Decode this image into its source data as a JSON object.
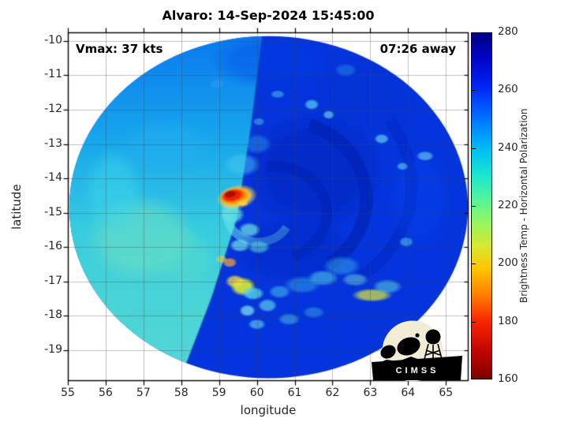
{
  "chart_data": {
    "type": "heatmap",
    "title": "Alvaro: 14-Sep-2024 15:45:00",
    "xlabel": "longitude",
    "ylabel": "latitude",
    "xlim": [
      55,
      65.6
    ],
    "ylim": [
      -19.9,
      -9.75
    ],
    "x_ticks": [
      55,
      56,
      57,
      58,
      59,
      60,
      61,
      62,
      63,
      64,
      65
    ],
    "y_ticks": [
      -10,
      -11,
      -12,
      -13,
      -14,
      -15,
      -16,
      -17,
      -18,
      -19
    ],
    "grid": true,
    "tick_dir": "out",
    "annotations": {
      "vmax": "Vmax: 37 kts",
      "time_to_closest": "07:26 away"
    },
    "colorbar": {
      "label": "Brightness Temp - Horizontal Polarization",
      "min": 160,
      "max": 280,
      "ticks": [
        160,
        180,
        200,
        220,
        240,
        260,
        280
      ],
      "inner_ticks": [
        180,
        200,
        220,
        240,
        260
      ],
      "stops": [
        {
          "v": 280,
          "c": "#000083"
        },
        {
          "v": 271,
          "c": "#0005C8"
        },
        {
          "v": 262,
          "c": "#0022F2"
        },
        {
          "v": 254,
          "c": "#0057FF"
        },
        {
          "v": 246,
          "c": "#0092FF"
        },
        {
          "v": 238,
          "c": "#00C8F0"
        },
        {
          "v": 230,
          "c": "#1EE8CA"
        },
        {
          "v": 222,
          "c": "#55F49A"
        },
        {
          "v": 214,
          "c": "#97F55F"
        },
        {
          "v": 206,
          "c": "#D8E82F"
        },
        {
          "v": 198,
          "c": "#FFC400"
        },
        {
          "v": 189,
          "c": "#FF7E00"
        },
        {
          "v": 180,
          "c": "#F92600"
        },
        {
          "v": 170,
          "c": "#C40600"
        },
        {
          "v": 160,
          "c": "#7E0000"
        }
      ]
    },
    "swath": {
      "center_lon": 60.31,
      "center_lat": -14.84,
      "radius_lon_deg": 5.27,
      "radius_lat_deg": 4.98,
      "background_color": "#0434DC",
      "seam": [
        [
          60.16,
          -9.75
        ],
        [
          59.85,
          -12.5
        ],
        [
          59.47,
          -15.2
        ],
        [
          58.8,
          -17.5
        ],
        [
          57.96,
          -19.9
        ]
      ],
      "seam_color": "rgba(0,60,180,0.35)",
      "left_sector_gradient": [
        {
          "lat": -9.75,
          "color": "#0A78F0"
        },
        {
          "lat": -13.0,
          "color": "#18A8EC"
        },
        {
          "lat": -15.5,
          "color": "#38CCE0"
        },
        {
          "lat": -18.0,
          "color": "#4CD6D4"
        },
        {
          "lat": -19.9,
          "color": "#55D4DC"
        }
      ],
      "arcs": [
        {
          "lon": 60.8,
          "lat": -14.2,
          "r": 3.3,
          "a0": -35,
          "a1": 60,
          "color": "rgba(0,30,170,0.30)",
          "w": 0.3
        },
        {
          "lon": 60.6,
          "lat": -14.6,
          "r": 2.3,
          "a0": -70,
          "a1": 55,
          "color": "rgba(0,22,150,0.40)",
          "w": 0.34
        },
        {
          "lon": 60.5,
          "lat": -15.0,
          "r": 1.35,
          "a0": -100,
          "a1": 70,
          "color": "rgba(0,26,160,0.40)",
          "w": 0.28
        },
        {
          "lon": 60.05,
          "lat": -15.0,
          "r": 0.85,
          "a0": 30,
          "a1": 195,
          "color": "rgba(110,225,232,0.55)",
          "w": 0.22
        }
      ],
      "features": [
        {
          "lon": 56.95,
          "lat": -15.75,
          "rx": 1.5,
          "ry": 1.3,
          "color": "#74E2BE",
          "alpha": 0.5
        },
        {
          "lon": 56.2,
          "lat": -14.4,
          "rx": 0.8,
          "ry": 1.3,
          "color": "#3ED8EA",
          "alpha": 0.45
        },
        {
          "lon": 57.6,
          "lat": -13.1,
          "rx": 1.3,
          "ry": 0.9,
          "color": "#28AEF2",
          "alpha": 0.4
        },
        {
          "lon": 57.3,
          "lat": -17.6,
          "rx": 1.0,
          "ry": 0.8,
          "color": "#46D2D8",
          "alpha": 0.4
        },
        {
          "lon": 58.1,
          "lat": -16.3,
          "rx": 0.8,
          "ry": 0.9,
          "color": "#5ADCC8",
          "alpha": 0.4
        },
        {
          "lon": 61.5,
          "lat": -13.8,
          "rx": 1.9,
          "ry": 1.8,
          "color": "#0020B4",
          "alpha": 0.45
        },
        {
          "lon": 61.0,
          "lat": -16.1,
          "rx": 1.6,
          "ry": 1.0,
          "color": "#0024BE",
          "alpha": 0.4
        },
        {
          "lon": 62.9,
          "lat": -11.6,
          "rx": 1.5,
          "ry": 1.2,
          "color": "#0130CE",
          "alpha": 0.3
        },
        {
          "lon": 60.4,
          "lat": -10.6,
          "rx": 1.7,
          "ry": 0.8,
          "color": "#0140E4",
          "alpha": 0.35
        },
        {
          "lon": 64.3,
          "lat": -14.6,
          "rx": 0.9,
          "ry": 1.6,
          "color": "#0846EE",
          "alpha": 0.3
        },
        {
          "lon": 59.35,
          "lat": -15.05,
          "rx": 0.33,
          "ry": 0.28,
          "color": "#62E2E2",
          "alpha": 0.75
        },
        {
          "lon": 59.8,
          "lat": -15.5,
          "rx": 0.3,
          "ry": 0.22,
          "color": "#6FE4E0",
          "alpha": 0.7
        },
        {
          "lon": 59.55,
          "lat": -15.95,
          "rx": 0.28,
          "ry": 0.2,
          "color": "#74E6E6",
          "alpha": 0.7
        },
        {
          "lon": 60.05,
          "lat": -16.0,
          "rx": 0.3,
          "ry": 0.2,
          "color": "#58D8E0",
          "alpha": 0.6
        },
        {
          "lon": 59.6,
          "lat": -13.6,
          "rx": 0.5,
          "ry": 0.35,
          "color": "#49C8F0",
          "alpha": 0.5
        },
        {
          "lon": 60.0,
          "lat": -13.0,
          "rx": 0.4,
          "ry": 0.3,
          "color": "#2C9CEC",
          "alpha": 0.45
        },
        {
          "lon": 59.47,
          "lat": -14.55,
          "rx": 0.55,
          "ry": 0.36,
          "color": "#FFD84E",
          "alpha": 0.95,
          "rot": -12
        },
        {
          "lon": 59.42,
          "lat": -14.53,
          "rx": 0.44,
          "ry": 0.28,
          "color": "#FF9100",
          "alpha": 1,
          "rot": -12
        },
        {
          "lon": 59.36,
          "lat": -14.5,
          "rx": 0.33,
          "ry": 0.2,
          "color": "#EC2400",
          "alpha": 1,
          "rot": -12
        },
        {
          "lon": 59.3,
          "lat": -14.46,
          "rx": 0.18,
          "ry": 0.11,
          "color": "#AE0C00",
          "alpha": 1,
          "rot": -12
        },
        {
          "lon": 59.62,
          "lat": -14.72,
          "rx": 0.16,
          "ry": 0.1,
          "color": "#FFD040",
          "alpha": 0.85
        },
        {
          "lon": 59.63,
          "lat": -17.15,
          "rx": 0.34,
          "ry": 0.28,
          "color": "#CBE23E",
          "alpha": 0.95
        },
        {
          "lon": 59.42,
          "lat": -17.0,
          "rx": 0.26,
          "ry": 0.2,
          "color": "#F2DE42",
          "alpha": 0.75
        },
        {
          "lon": 59.28,
          "lat": -16.45,
          "rx": 0.2,
          "ry": 0.15,
          "color": "#FFAA2E",
          "alpha": 0.7
        },
        {
          "lon": 59.06,
          "lat": -16.35,
          "rx": 0.16,
          "ry": 0.12,
          "color": "#FFC83C",
          "alpha": 0.6
        },
        {
          "lon": 59.9,
          "lat": -17.35,
          "rx": 0.3,
          "ry": 0.2,
          "color": "#55D6E8",
          "alpha": 0.8
        },
        {
          "lon": 60.28,
          "lat": -17.7,
          "rx": 0.26,
          "ry": 0.2,
          "color": "#5ACEE8",
          "alpha": 0.7
        },
        {
          "lon": 59.75,
          "lat": -17.85,
          "rx": 0.22,
          "ry": 0.18,
          "color": "#82E8F0",
          "alpha": 0.7
        },
        {
          "lon": 60.0,
          "lat": -18.25,
          "rx": 0.24,
          "ry": 0.16,
          "color": "#64D8F0",
          "alpha": 0.6
        },
        {
          "lon": 60.6,
          "lat": -17.3,
          "rx": 0.3,
          "ry": 0.2,
          "color": "#3FB6E8",
          "alpha": 0.6
        },
        {
          "lon": 61.2,
          "lat": -17.1,
          "rx": 0.5,
          "ry": 0.26,
          "color": "#2F9EE8",
          "alpha": 0.55
        },
        {
          "lon": 61.75,
          "lat": -16.9,
          "rx": 0.42,
          "ry": 0.24,
          "color": "#4CC2E8",
          "alpha": 0.6
        },
        {
          "lon": 62.25,
          "lat": -16.55,
          "rx": 0.5,
          "ry": 0.3,
          "color": "#36ACE8",
          "alpha": 0.5
        },
        {
          "lon": 63.05,
          "lat": -17.4,
          "rx": 0.55,
          "ry": 0.2,
          "color": "#C6D64A",
          "alpha": 0.8
        },
        {
          "lon": 63.45,
          "lat": -17.15,
          "rx": 0.4,
          "ry": 0.22,
          "color": "#54C6E0",
          "alpha": 0.6
        },
        {
          "lon": 62.6,
          "lat": -16.95,
          "rx": 0.36,
          "ry": 0.2,
          "color": "#66CEE8",
          "alpha": 0.55
        },
        {
          "lon": 60.85,
          "lat": -18.1,
          "rx": 0.3,
          "ry": 0.18,
          "color": "#4FC4EC",
          "alpha": 0.5
        },
        {
          "lon": 61.5,
          "lat": -17.9,
          "rx": 0.3,
          "ry": 0.18,
          "color": "#3FB0E4",
          "alpha": 0.45
        },
        {
          "lon": 61.45,
          "lat": -11.85,
          "rx": 0.2,
          "ry": 0.16,
          "color": "#52C6F0",
          "alpha": 0.75
        },
        {
          "lon": 61.9,
          "lat": -12.15,
          "rx": 0.16,
          "ry": 0.13,
          "color": "#6ED6F0",
          "alpha": 0.65
        },
        {
          "lon": 63.3,
          "lat": -12.85,
          "rx": 0.2,
          "ry": 0.15,
          "color": "#5ECEF0",
          "alpha": 0.7
        },
        {
          "lon": 63.85,
          "lat": -13.65,
          "rx": 0.16,
          "ry": 0.12,
          "color": "#56C6F0",
          "alpha": 0.65
        },
        {
          "lon": 64.45,
          "lat": -13.35,
          "rx": 0.24,
          "ry": 0.15,
          "color": "#6ED6F0",
          "alpha": 0.6
        },
        {
          "lon": 63.95,
          "lat": -15.85,
          "rx": 0.2,
          "ry": 0.15,
          "color": "#56C6E8",
          "alpha": 0.55
        },
        {
          "lon": 60.55,
          "lat": -11.55,
          "rx": 0.2,
          "ry": 0.12,
          "color": "#4CBEF0",
          "alpha": 0.55
        },
        {
          "lon": 60.05,
          "lat": -12.35,
          "rx": 0.16,
          "ry": 0.12,
          "color": "#56C6F0",
          "alpha": 0.5
        },
        {
          "lon": 62.35,
          "lat": -10.85,
          "rx": 0.3,
          "ry": 0.2,
          "color": "#2C8EE8",
          "alpha": 0.45
        },
        {
          "lon": 58.95,
          "lat": -11.25,
          "rx": 0.22,
          "ry": 0.15,
          "color": "#339EEC",
          "alpha": 0.45
        }
      ]
    }
  },
  "storm": {
    "name": "Alvaro",
    "datetime": "14-Sep-2024 15:45:00",
    "vmax_kts": 37,
    "time_offset": "07:26 away"
  },
  "logo": {
    "name": "CIMSS",
    "text": "CIMSS"
  }
}
